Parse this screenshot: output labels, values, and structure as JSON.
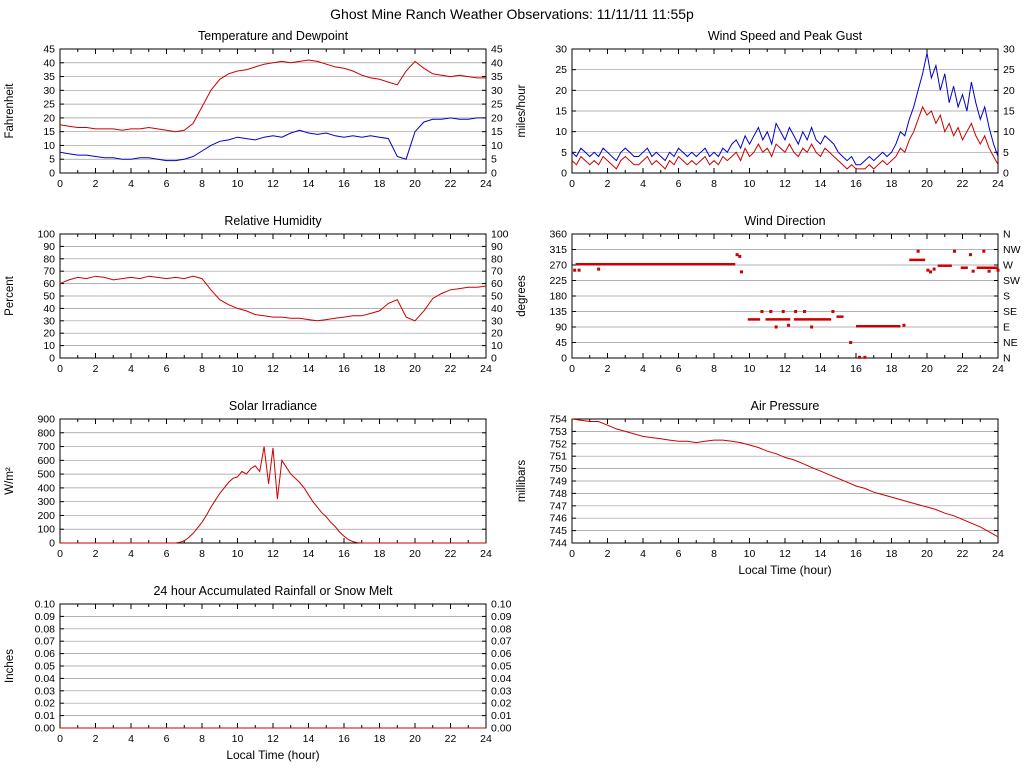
{
  "page": {
    "title": "Ghost Mine Ranch Weather Observations: 11/11/11 11:55p"
  },
  "chart_data": [
    {
      "id": "temperature-dewpoint",
      "type": "line",
      "title": "Temperature and Dewpoint",
      "ylabel": "Fahrenheit",
      "xlabel": "",
      "xlim": [
        0,
        24
      ],
      "xtick": 2,
      "xminor": 1,
      "ylim": [
        0,
        45
      ],
      "ytick": 5,
      "ydec": 0,
      "right": "mirror",
      "grid": "on",
      "series": [
        {
          "name": "temperature",
          "type": "line",
          "color": "#cc0000",
          "x_step": 0.5,
          "values": [
            17.5,
            17,
            16.5,
            16.5,
            16,
            16,
            16,
            15.5,
            16,
            16,
            16.5,
            16,
            15.5,
            15,
            15.5,
            18,
            24,
            30,
            34,
            36,
            37,
            37.5,
            38.5,
            39.5,
            40,
            40.5,
            40,
            40.5,
            41,
            40.5,
            39.5,
            38.5,
            38,
            37,
            35.5,
            34.5,
            34,
            33,
            32,
            37,
            40.5,
            38,
            36,
            35.5,
            35,
            35.5,
            35,
            34.5,
            34.5
          ]
        },
        {
          "name": "dewpoint",
          "type": "line",
          "color": "#0000cc",
          "x_step": 0.5,
          "values": [
            7.5,
            7,
            6.5,
            6.5,
            6,
            5.5,
            5.5,
            5,
            5,
            5.5,
            5.5,
            5,
            4.5,
            4.5,
            5,
            6,
            8,
            10,
            11.5,
            12,
            13,
            12.5,
            12,
            13,
            13.5,
            13,
            14.5,
            15.5,
            14.5,
            14,
            14.5,
            13.5,
            13,
            13.5,
            13,
            13.5,
            13,
            12.5,
            6,
            5,
            15,
            18.5,
            19.5,
            19.5,
            20,
            19.5,
            19.5,
            20,
            20
          ]
        }
      ]
    },
    {
      "id": "wind-speed-gust",
      "type": "line",
      "title": "Wind Speed and Peak Gust",
      "ylabel": "miles/hour",
      "xlabel": "",
      "xlim": [
        0,
        24
      ],
      "xtick": 2,
      "xminor": 1,
      "ylim": [
        0,
        30
      ],
      "ytick": 5,
      "ydec": 0,
      "right": "mirror",
      "grid": "on",
      "series": [
        {
          "name": "peak-gust",
          "type": "line",
          "color": "#0000cc",
          "x_step": 0.25,
          "values": [
            5,
            4,
            6,
            5,
            4,
            5,
            4,
            6,
            5,
            4,
            3,
            5,
            6,
            5,
            4,
            4,
            5,
            6,
            4,
            5,
            4,
            3,
            5,
            4,
            6,
            5,
            4,
            5,
            4,
            5,
            6,
            4,
            5,
            4,
            6,
            5,
            7,
            8,
            6,
            9,
            7,
            9,
            11,
            8,
            10,
            7,
            12,
            10,
            8,
            11,
            9,
            7,
            10,
            8,
            11,
            8,
            7,
            9,
            8,
            7,
            5,
            4,
            3,
            4,
            2,
            2,
            3,
            4,
            3,
            4,
            5,
            4,
            5,
            7,
            10,
            9,
            13,
            16,
            20,
            24,
            29,
            23,
            26,
            20,
            24,
            17,
            21,
            16,
            19,
            15,
            22,
            17,
            13,
            16,
            11,
            7,
            4
          ]
        },
        {
          "name": "wind-speed",
          "type": "line",
          "color": "#cc0000",
          "x_step": 0.25,
          "values": [
            3,
            2,
            4,
            3,
            2,
            3,
            2,
            4,
            3,
            2,
            1,
            3,
            4,
            3,
            2,
            2,
            3,
            4,
            2,
            3,
            2,
            1,
            3,
            2,
            4,
            3,
            2,
            3,
            2,
            3,
            4,
            2,
            3,
            2,
            4,
            3,
            4,
            5,
            3,
            6,
            4,
            5,
            7,
            5,
            6,
            4,
            7,
            6,
            5,
            7,
            5,
            4,
            6,
            5,
            7,
            5,
            4,
            6,
            5,
            4,
            3,
            2,
            1,
            2,
            1,
            1,
            1,
            2,
            1,
            2,
            3,
            2,
            3,
            4,
            6,
            5,
            8,
            10,
            13,
            16,
            14,
            15,
            12,
            14,
            10,
            12,
            9,
            11,
            8,
            10,
            12,
            9,
            7,
            9,
            6,
            4,
            2
          ]
        }
      ]
    },
    {
      "id": "relative-humidity",
      "type": "line",
      "title": "Relative Humidity",
      "ylabel": "Percent",
      "xlabel": "",
      "xlim": [
        0,
        24
      ],
      "xtick": 2,
      "xminor": 1,
      "ylim": [
        0,
        100
      ],
      "ytick": 10,
      "ydec": 0,
      "right": "mirror",
      "grid": "on",
      "series": [
        {
          "name": "humidity",
          "type": "line",
          "color": "#cc0000",
          "x_step": 0.5,
          "values": [
            60,
            63,
            65,
            64,
            66,
            65,
            63,
            64,
            65,
            64,
            66,
            65,
            64,
            65,
            64,
            66,
            64,
            55,
            47,
            43,
            40,
            38,
            35,
            34,
            33,
            33,
            32,
            32,
            31,
            30,
            31,
            32,
            33,
            34,
            34,
            36,
            38,
            44,
            47,
            33,
            30,
            38,
            48,
            52,
            55,
            56,
            57,
            57,
            58
          ]
        }
      ]
    },
    {
      "id": "wind-direction",
      "type": "scatter",
      "title": "Wind Direction",
      "ylabel": "degrees",
      "xlabel": "",
      "xlim": [
        0,
        24
      ],
      "xtick": 2,
      "xminor": 1,
      "ylim": [
        0,
        360
      ],
      "ytick": 45,
      "ydec": 0,
      "right": "labels",
      "right_labels": {
        "360": "N",
        "315": "NW",
        "270": "W",
        "225": "SW",
        "180": "S",
        "135": "SE",
        "90": "E",
        "45": "NE",
        "0": "N"
      },
      "grid": "on",
      "series": [
        {
          "name": "wind-direction",
          "type": "dash-scatter",
          "color": "#cc0000",
          "segments": [
            [
              0.2,
              9.2,
              272
            ],
            [
              9.9,
              10.6,
              112
            ],
            [
              10.9,
              12.3,
              112
            ],
            [
              12.5,
              14.6,
              112
            ],
            [
              14.9,
              15.3,
              120
            ],
            [
              16.0,
              18.5,
              92
            ],
            [
              19.0,
              19.9,
              285
            ],
            [
              20.6,
              21.4,
              268
            ],
            [
              21.9,
              22.3,
              262
            ],
            [
              22.8,
              24.0,
              262
            ]
          ],
          "points": [
            [
              0.15,
              255
            ],
            [
              0.4,
              255
            ],
            [
              1.5,
              258
            ],
            [
              9.3,
              300
            ],
            [
              9.45,
              295
            ],
            [
              9.55,
              250
            ],
            [
              10.7,
              135
            ],
            [
              11.2,
              135
            ],
            [
              11.5,
              90
            ],
            [
              11.9,
              135
            ],
            [
              12.2,
              95
            ],
            [
              12.6,
              135
            ],
            [
              13.1,
              135
            ],
            [
              13.5,
              90
            ],
            [
              14.7,
              135
            ],
            [
              15.7,
              45
            ],
            [
              16.2,
              2
            ],
            [
              16.5,
              2
            ],
            [
              18.7,
              95
            ],
            [
              19.5,
              310
            ],
            [
              20.05,
              255
            ],
            [
              20.2,
              250
            ],
            [
              20.4,
              258
            ],
            [
              21.55,
              310
            ],
            [
              22.45,
              300
            ],
            [
              22.6,
              252
            ],
            [
              23.2,
              310
            ],
            [
              23.5,
              252
            ],
            [
              24,
              255
            ]
          ]
        }
      ]
    },
    {
      "id": "solar-irradiance",
      "type": "line",
      "title": "Solar Irradiance",
      "ylabel": "W/m²",
      "xlabel": "",
      "xlim": [
        0,
        24
      ],
      "xtick": 2,
      "xminor": 1,
      "ylim": [
        0,
        900
      ],
      "ytick": 100,
      "ydec": 0,
      "right": "none",
      "grid": "on",
      "series": [
        {
          "name": "solar-irradiance",
          "type": "line",
          "color": "#cc0000",
          "x_step": 0.25,
          "values": [
            0,
            0,
            0,
            0,
            0,
            0,
            0,
            0,
            0,
            0,
            0,
            0,
            0,
            0,
            0,
            0,
            0,
            0,
            0,
            0,
            0,
            0,
            0,
            0,
            0,
            0,
            0,
            5,
            15,
            40,
            70,
            110,
            150,
            200,
            260,
            310,
            360,
            400,
            440,
            470,
            480,
            520,
            500,
            540,
            560,
            520,
            700,
            430,
            690,
            320,
            600,
            550,
            500,
            470,
            440,
            400,
            350,
            300,
            260,
            220,
            190,
            150,
            120,
            80,
            50,
            25,
            10,
            3,
            0,
            0,
            0,
            0,
            0,
            0,
            0,
            0,
            0,
            0,
            0,
            0,
            0,
            0,
            0,
            0,
            0,
            0,
            0,
            0,
            0,
            0,
            0,
            0,
            0,
            0,
            0,
            0,
            0
          ]
        }
      ]
    },
    {
      "id": "air-pressure",
      "type": "line",
      "title": "Air Pressure",
      "ylabel": "millibars",
      "xlabel": "Local Time (hour)",
      "xlim": [
        0,
        24
      ],
      "xtick": 2,
      "xminor": 1,
      "ylim": [
        744,
        754
      ],
      "ytick": 1,
      "ydec": 0,
      "right": "none",
      "grid": "on",
      "series": [
        {
          "name": "air-pressure",
          "type": "line",
          "color": "#cc0000",
          "x_step": 0.5,
          "values": [
            754,
            753.9,
            753.8,
            753.8,
            753.5,
            753.2,
            753,
            752.8,
            752.6,
            752.5,
            752.4,
            752.3,
            752.2,
            752.2,
            752.1,
            752.2,
            752.3,
            752.3,
            752.2,
            752.1,
            751.9,
            751.7,
            751.4,
            751.2,
            750.9,
            750.7,
            750.4,
            750.1,
            749.8,
            749.5,
            749.2,
            748.9,
            748.6,
            748.4,
            748.1,
            747.9,
            747.7,
            747.5,
            747.3,
            747.1,
            746.9,
            746.7,
            746.4,
            746.2,
            745.9,
            745.6,
            745.3,
            744.9,
            744.5
          ]
        }
      ]
    },
    {
      "id": "rainfall",
      "type": "line",
      "title": "24 hour Accumulated Rainfall or Snow Melt",
      "ylabel": "Inches",
      "xlabel": "Local Time (hour)",
      "xlim": [
        0,
        24
      ],
      "xtick": 2,
      "xminor": 1,
      "ylim": [
        0,
        0.1
      ],
      "ytick": 0.01,
      "ydec": 2,
      "right": "mirror",
      "grid": "on",
      "series": [
        {
          "name": "rainfall",
          "type": "line",
          "color": "#cc0000",
          "x_step": 24,
          "values": [
            0,
            0
          ]
        }
      ]
    }
  ]
}
